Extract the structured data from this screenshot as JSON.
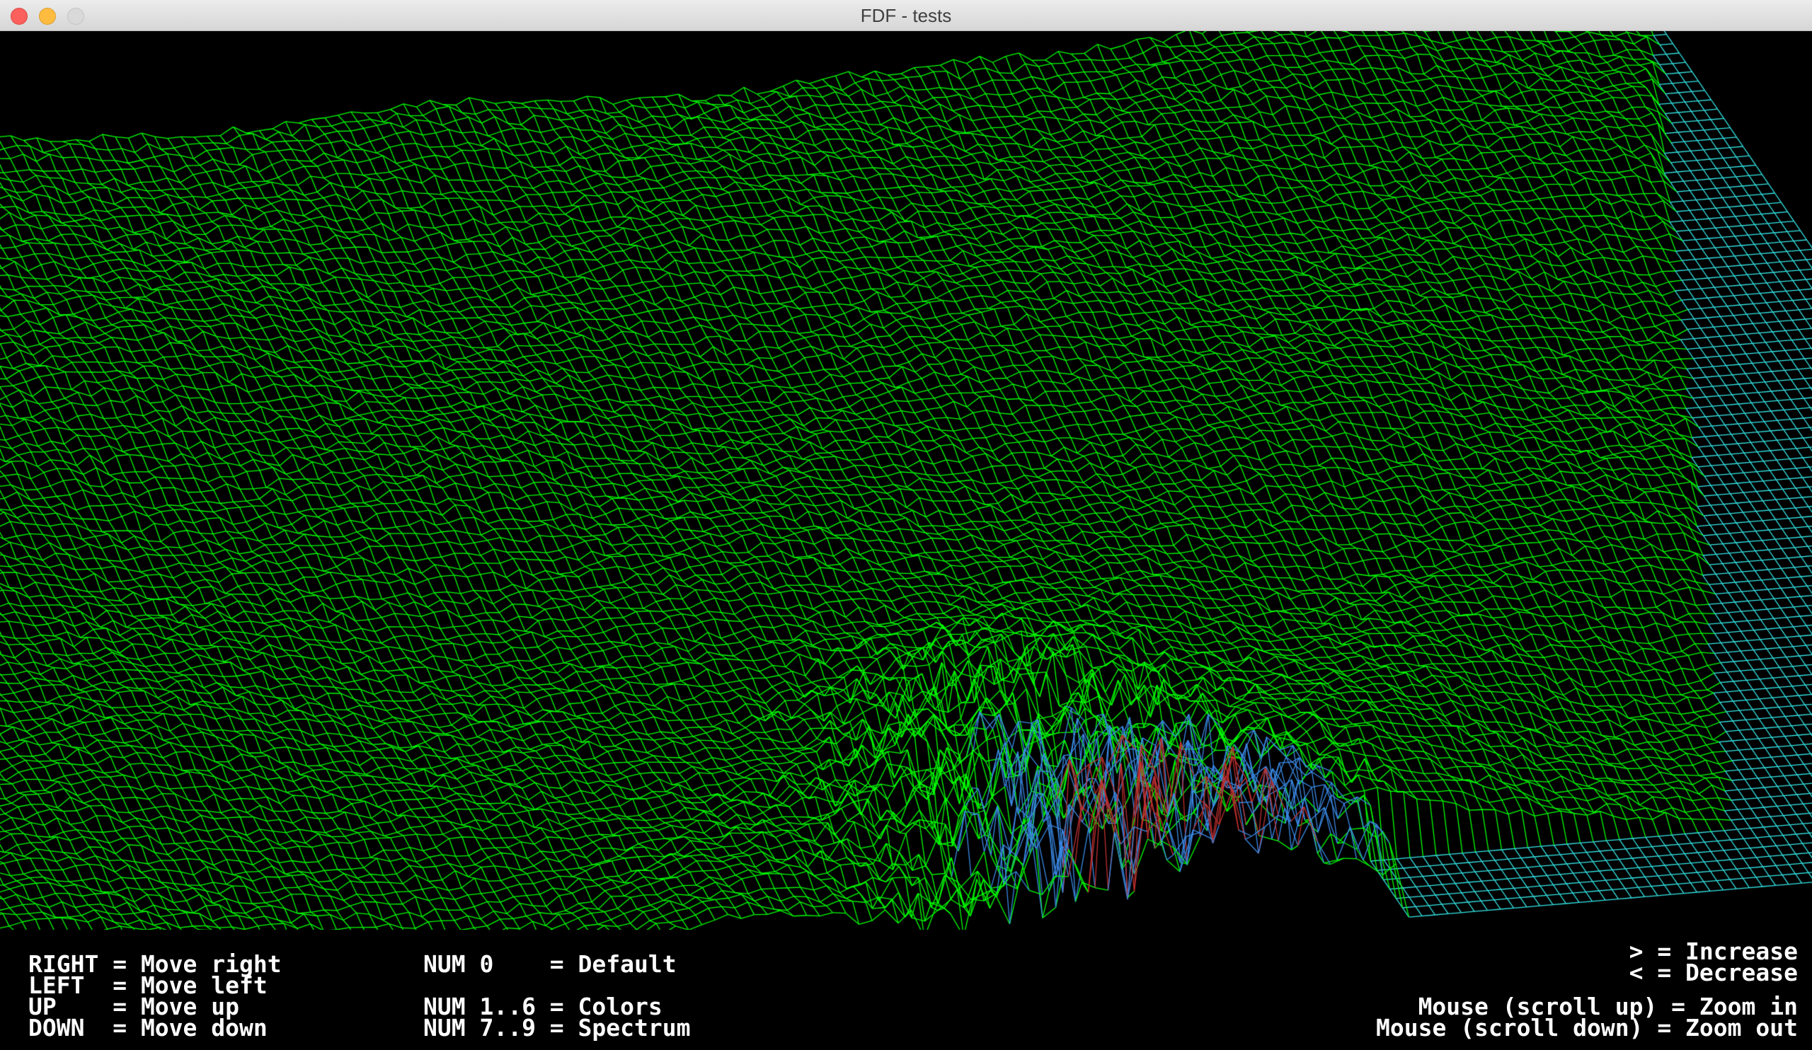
{
  "window": {
    "title": "FDF - tests"
  },
  "colors": {
    "mesh_primary": "#00ff00",
    "mesh_water": "#35e6e6",
    "mesh_blue": "#3a8ae6",
    "mesh_red": "#c03030",
    "background": "#000000",
    "help_text": "#ffffff"
  },
  "controls": {
    "left": [
      "RIGHT = Move right",
      "LEFT  = Move left",
      "UP    = Move up",
      "DOWN  = Move down"
    ],
    "middle": [
      "NUM 0    = Default",
      "NUM 1..6 = Colors",
      "NUM 7..9 = Spectrum"
    ],
    "right": [
      "> = Increase",
      "< = Decrease",
      "Mouse (scroll up) = Zoom in",
      "Mouse (scroll down) = Zoom out"
    ]
  }
}
